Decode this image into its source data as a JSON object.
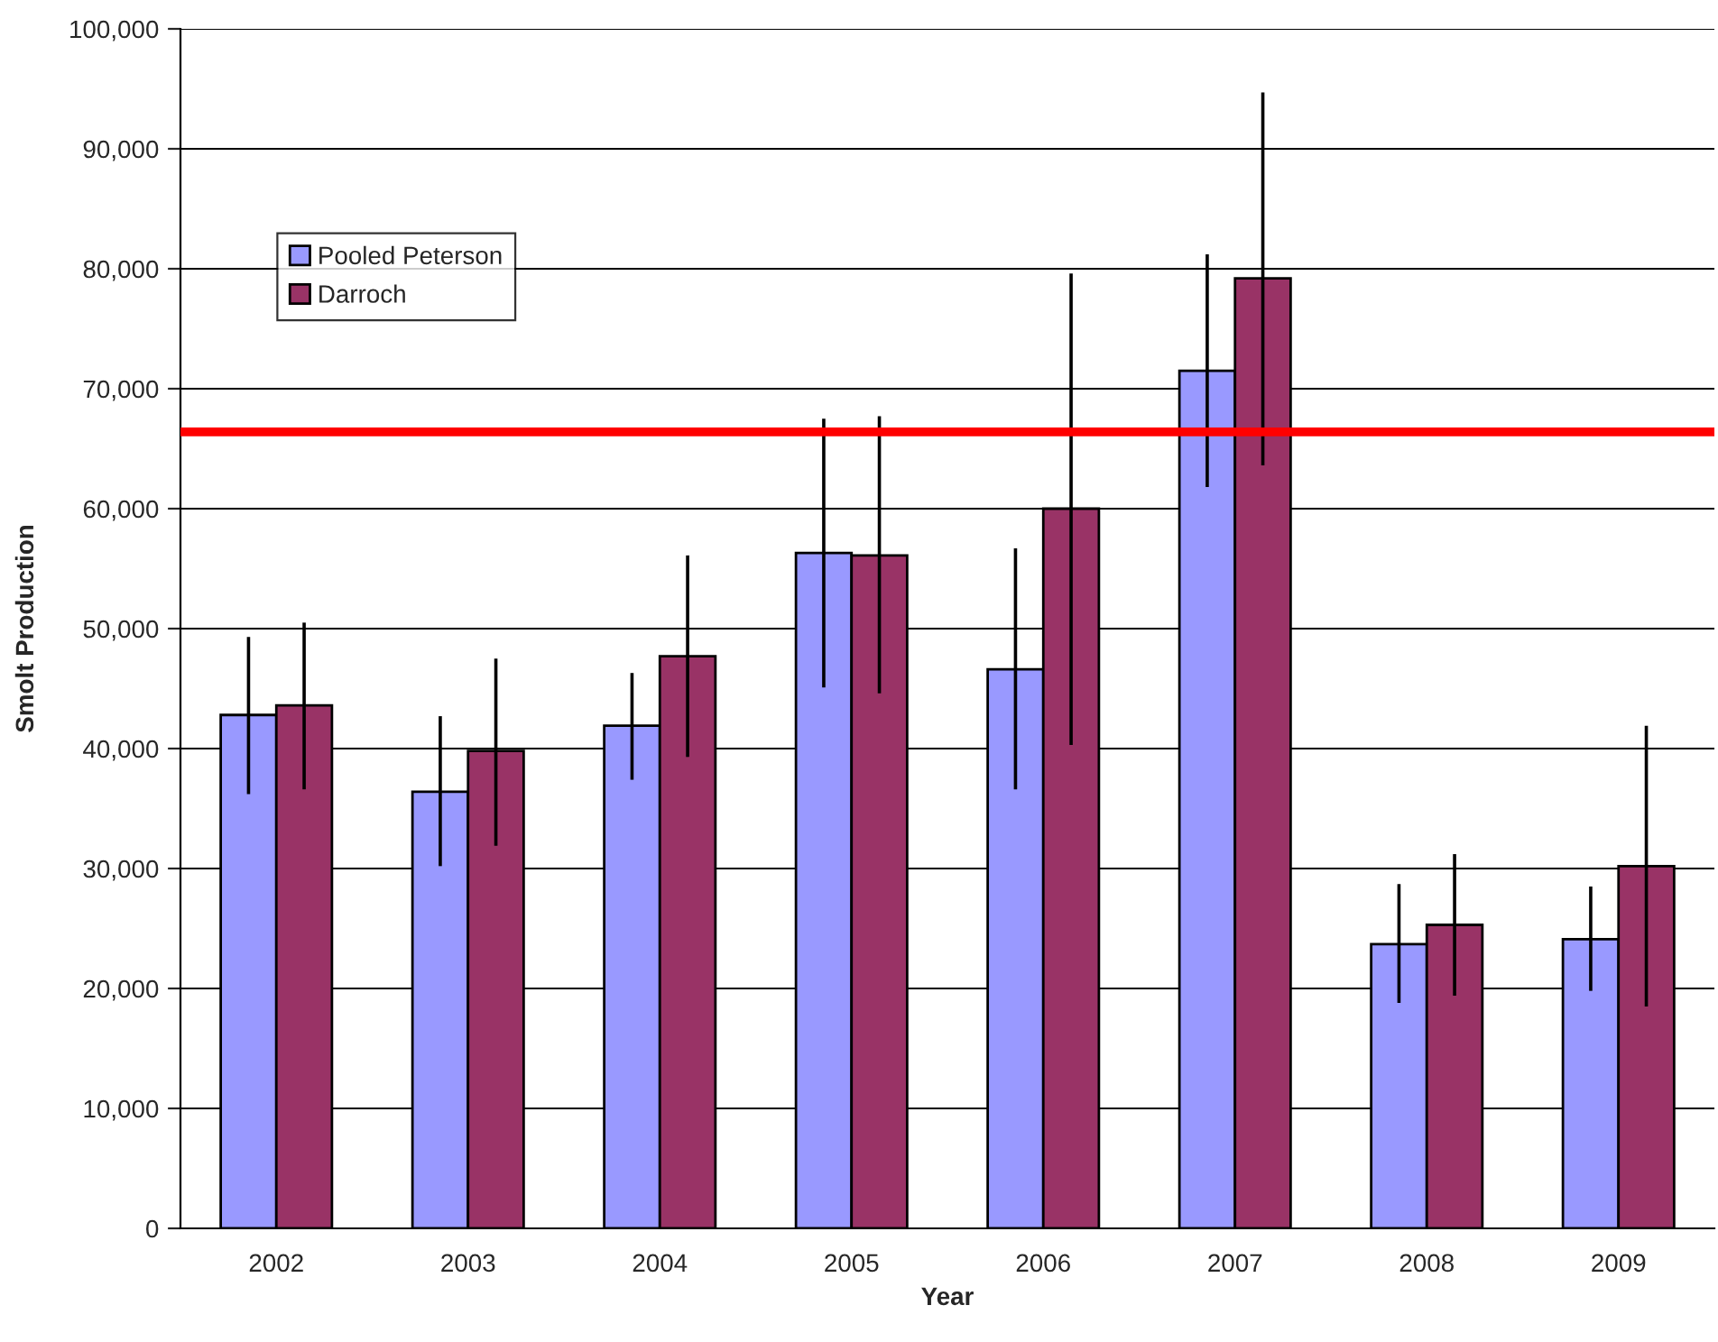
{
  "chart_data": {
    "type": "bar",
    "xlabel": "Year",
    "ylabel": "Smolt Production",
    "categories": [
      "2002",
      "2003",
      "2004",
      "2005",
      "2006",
      "2007",
      "2008",
      "2009"
    ],
    "series": [
      {
        "name": "Pooled Peterson",
        "color": "#9999ff",
        "values": [
          42800,
          36400,
          41900,
          56300,
          46600,
          71500,
          23700,
          24100
        ],
        "errors": [
          [
            36200,
            49300
          ],
          [
            30200,
            42700
          ],
          [
            37400,
            46300
          ],
          [
            45100,
            67500
          ],
          [
            36600,
            56700
          ],
          [
            61800,
            81200
          ],
          [
            18800,
            28700
          ],
          [
            19800,
            28500
          ]
        ]
      },
      {
        "name": "Darroch",
        "color": "#993366",
        "values": [
          43600,
          39800,
          47700,
          56100,
          60000,
          79200,
          25300,
          30200
        ],
        "errors": [
          [
            36600,
            50500
          ],
          [
            31900,
            47500
          ],
          [
            39300,
            56100
          ],
          [
            44600,
            67700
          ],
          [
            40300,
            79600
          ],
          [
            63600,
            94700
          ],
          [
            19400,
            31200
          ],
          [
            18500,
            41900
          ]
        ]
      }
    ],
    "ylim": [
      0,
      100000
    ],
    "yticks": [
      {
        "value": 0,
        "label": "0"
      },
      {
        "value": 10000,
        "label": "10,000"
      },
      {
        "value": 20000,
        "label": "20,000"
      },
      {
        "value": 30000,
        "label": "30,000"
      },
      {
        "value": 40000,
        "label": "40,000"
      },
      {
        "value": 50000,
        "label": "50,000"
      },
      {
        "value": 60000,
        "label": "60,000"
      },
      {
        "value": 70000,
        "label": "70,000"
      },
      {
        "value": 80000,
        "label": "80,000"
      },
      {
        "value": 90000,
        "label": "90,000"
      },
      {
        "value": 100000,
        "label": "100,000"
      }
    ],
    "ref_lines": [
      {
        "axis": "y",
        "value": 66400,
        "color": "#ff0000",
        "line_style": "solid"
      }
    ],
    "grid": "y",
    "legend": "upper left"
  }
}
